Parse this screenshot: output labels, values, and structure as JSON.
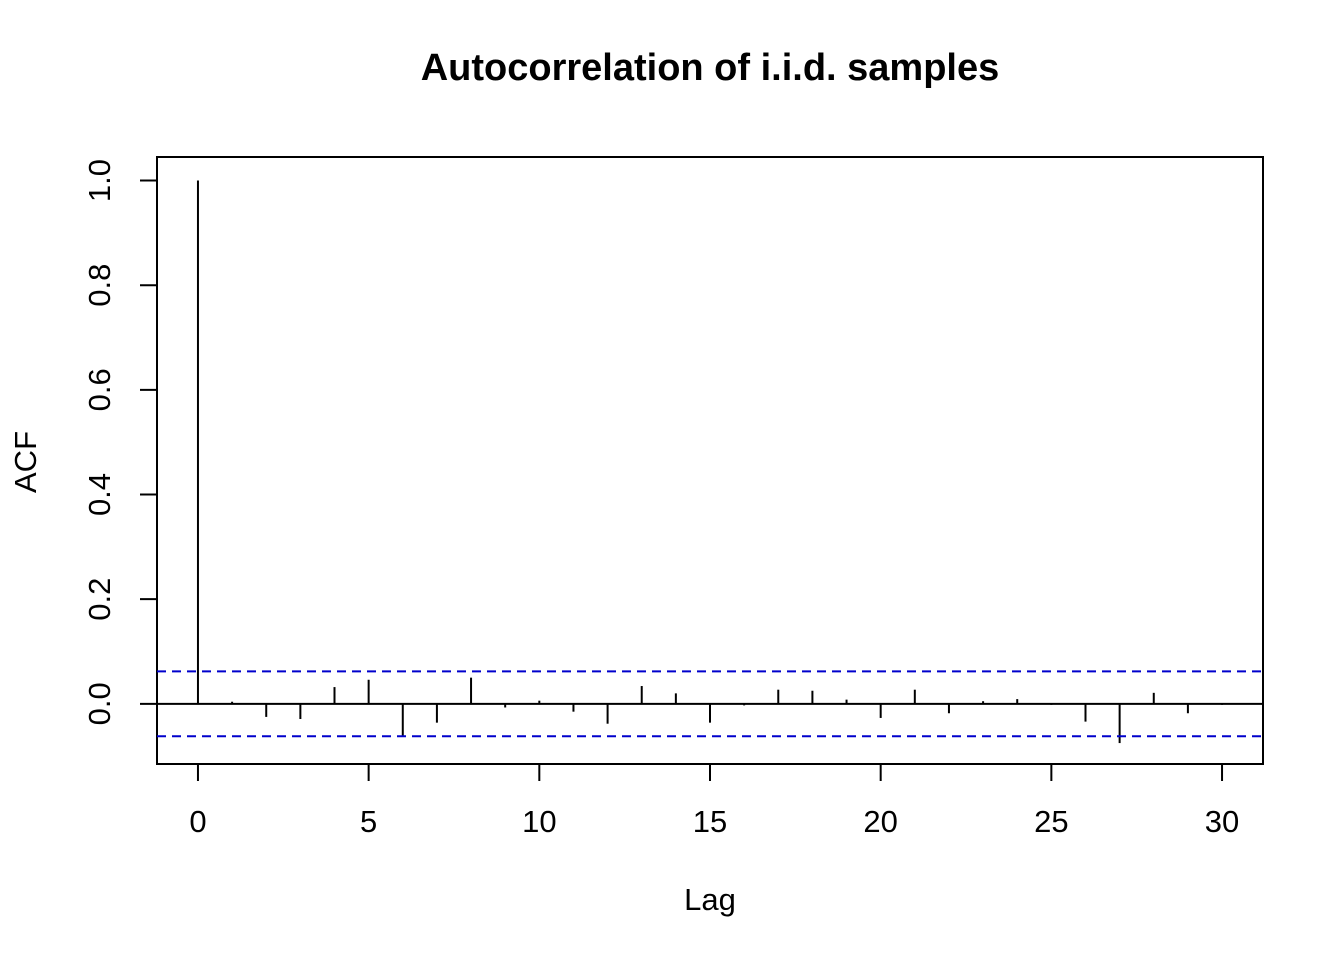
{
  "chart_data": {
    "type": "bar",
    "title": "Autocorrelation of i.i.d. samples",
    "xlabel": "Lag",
    "ylabel": "ACF",
    "x": [
      0,
      1,
      2,
      3,
      4,
      5,
      6,
      7,
      8,
      9,
      10,
      11,
      12,
      13,
      14,
      15,
      16,
      17,
      18,
      19,
      20,
      21,
      22,
      23,
      24,
      25,
      26,
      27,
      28,
      29,
      30
    ],
    "values": [
      1.0,
      0.004,
      -0.025,
      -0.029,
      0.032,
      0.046,
      -0.061,
      -0.036,
      0.05,
      -0.007,
      0.006,
      -0.015,
      -0.038,
      0.034,
      0.02,
      -0.036,
      -0.003,
      0.027,
      0.025,
      0.008,
      -0.027,
      0.027,
      -0.018,
      0.005,
      0.009,
      -0.002,
      -0.034,
      -0.075,
      0.021,
      -0.018,
      -0.002
    ],
    "confidence_bound": 0.062,
    "xlim": [
      -1.2,
      31.2
    ],
    "ylim": [
      -0.115,
      1.045
    ],
    "x_ticks": [
      0,
      5,
      10,
      15,
      20,
      25,
      30
    ],
    "y_ticks": [
      0.0,
      0.2,
      0.4,
      0.6,
      0.8,
      1.0
    ],
    "x_tick_labels": [
      "0",
      "5",
      "10",
      "15",
      "20",
      "25",
      "30"
    ],
    "y_tick_labels": [
      "0.0",
      "0.2",
      "0.4",
      "0.6",
      "0.8",
      "1.0"
    ],
    "grid": false,
    "colors": {
      "bars": "#000000",
      "confidence": "#0000cc",
      "zero_line": "#000000"
    }
  }
}
